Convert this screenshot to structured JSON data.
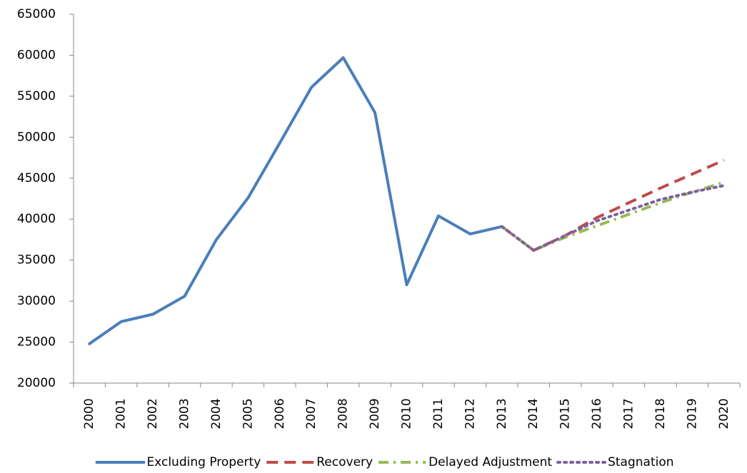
{
  "chart_data": {
    "type": "line",
    "categories": [
      "2000",
      "2001",
      "2002",
      "2003",
      "2004",
      "2005",
      "2006",
      "2007",
      "2008",
      "2009",
      "2010",
      "2011",
      "2012",
      "2013",
      "2014",
      "2015",
      "2016",
      "2017",
      "2018",
      "2019",
      "2020"
    ],
    "series": [
      {
        "name": "Excluding Property",
        "color": "#4a7ebb",
        "dash": "solid",
        "values": [
          24800,
          27500,
          28400,
          30600,
          37500,
          42600,
          49300,
          56100,
          59700,
          53000,
          32000,
          40400,
          38200,
          39100,
          null,
          null,
          null,
          null,
          null,
          null,
          null
        ]
      },
      {
        "name": "Recovery",
        "color": "#be4b48",
        "dash": "dashed",
        "values": [
          null,
          null,
          null,
          null,
          null,
          null,
          null,
          null,
          null,
          null,
          null,
          null,
          null,
          39100,
          36200,
          38000,
          40200,
          42000,
          43800,
          45500,
          47200
        ]
      },
      {
        "name": "Delayed Adjustment",
        "color": "#98b954",
        "dash": "dash-dot",
        "values": [
          null,
          null,
          null,
          null,
          null,
          null,
          null,
          null,
          null,
          null,
          null,
          null,
          null,
          39100,
          36200,
          37800,
          39200,
          40600,
          42000,
          43300,
          44500
        ]
      },
      {
        "name": "Stagnation",
        "color": "#7d60a0",
        "dash": "dotted",
        "values": [
          null,
          null,
          null,
          null,
          null,
          null,
          null,
          null,
          null,
          null,
          null,
          null,
          null,
          39100,
          36200,
          38000,
          39800,
          41100,
          42400,
          43300,
          44100
        ]
      }
    ],
    "ylim": [
      20000,
      65000
    ],
    "yticks": [
      20000,
      25000,
      30000,
      35000,
      40000,
      45000,
      50000,
      55000,
      60000,
      65000
    ],
    "grid": false,
    "legend": "bottom"
  }
}
